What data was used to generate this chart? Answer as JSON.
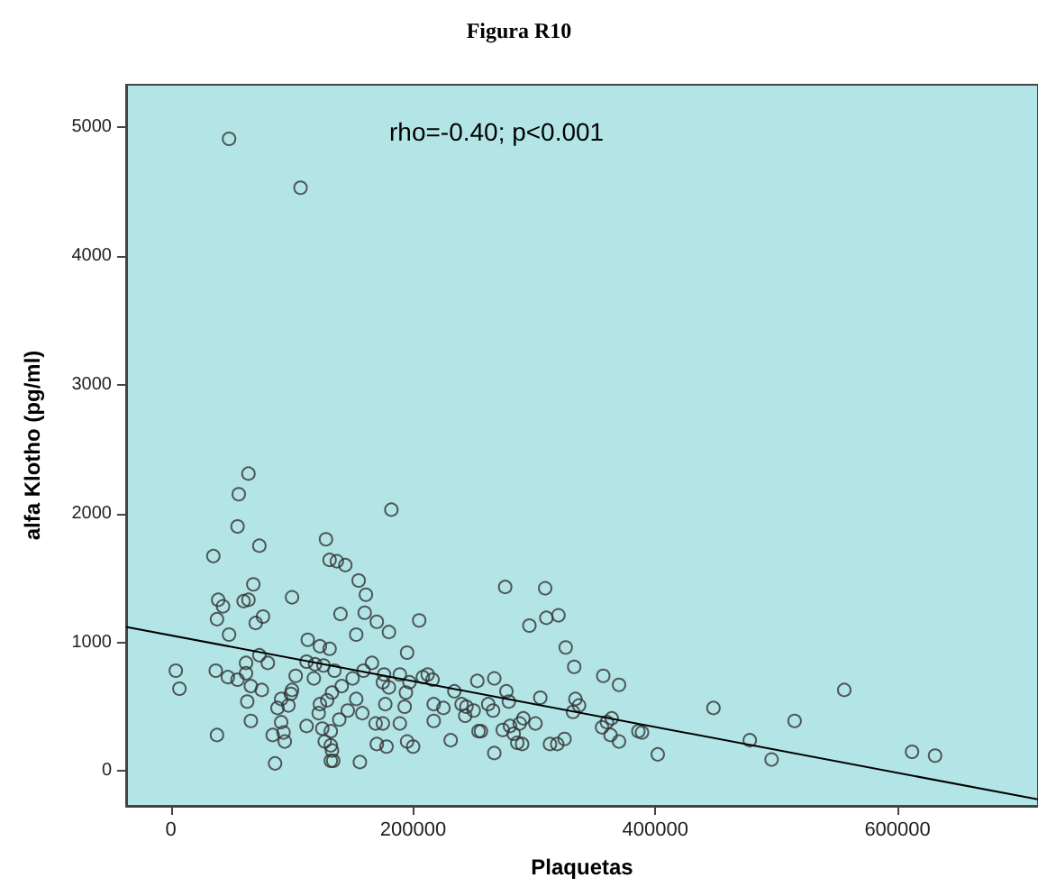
{
  "chart_data": {
    "type": "scatter",
    "title": "Figura R10",
    "xlabel": "Plaquetas",
    "ylabel": "alfa Klotho (pg/ml)",
    "annotations": [
      "rho=-0.40; p<0.001"
    ],
    "xlim": [
      -37000,
      716000
    ],
    "ylim": [
      -270,
      5330
    ],
    "xticks": [
      0,
      200000,
      400000,
      600000
    ],
    "yticks": [
      0,
      1000,
      2000,
      3000,
      4000,
      5000
    ],
    "grid": false,
    "series": [
      {
        "color": "#333333",
        "marker": "circle",
        "x": [
          48000,
          107000,
          64000,
          56000,
          55000,
          73000,
          35000,
          128000,
          131000,
          137000,
          144000,
          182000,
          155000,
          161000,
          160000,
          170000,
          180000,
          205000,
          100000,
          39000,
          43000,
          60000,
          64000,
          68000,
          38000,
          70000,
          76000,
          48000,
          140000,
          153000,
          195000,
          113000,
          123000,
          131000,
          73000,
          80000,
          112000,
          119000,
          126000,
          4000,
          7000,
          37000,
          47000,
          55000,
          62000,
          62000,
          66000,
          75000,
          103000,
          118000,
          135000,
          150000,
          159000,
          166000,
          176000,
          189000,
          175000,
          180000,
          197000,
          208000,
          216000,
          63000,
          91000,
          100000,
          99000,
          88000,
          97000,
          133000,
          129000,
          141000,
          153000,
          123000,
          146000,
          158000,
          177000,
          194000,
          193000,
          217000,
          66000,
          91000,
          112000,
          122000,
          139000,
          169000,
          175000,
          189000,
          217000,
          38000,
          84000,
          93000,
          94000,
          125000,
          132000,
          127000,
          132000,
          133000,
          170000,
          178000,
          195000,
          200000,
          86000,
          132000,
          134000,
          156000,
          212000,
          225000,
          231000,
          234000,
          240000,
          244000,
          243000,
          250000,
          253000,
          254000,
          256000,
          262000,
          266000,
          267000,
          267000,
          274000,
          276000,
          277000,
          279000,
          280000,
          283000,
          286000,
          288000,
          290000,
          291000,
          296000,
          301000,
          305000,
          309000,
          310000,
          320000,
          313000,
          319000,
          325000,
          326000,
          333000,
          334000,
          332000,
          337000,
          357000,
          356000,
          360000,
          364000,
          363000,
          370000,
          370000,
          386000,
          389000,
          402000,
          448000,
          478000,
          496000,
          515000,
          556000,
          612000,
          631000
        ],
        "values": [
          4910,
          4530,
          2310,
          2150,
          1900,
          1750,
          1670,
          1800,
          1640,
          1630,
          1600,
          2030,
          1480,
          1370,
          1230,
          1160,
          1080,
          1170,
          1350,
          1330,
          1280,
          1320,
          1330,
          1450,
          1180,
          1150,
          1200,
          1060,
          1220,
          1060,
          920,
          1020,
          970,
          950,
          900,
          840,
          850,
          830,
          820,
          780,
          640,
          780,
          730,
          710,
          840,
          760,
          660,
          630,
          740,
          720,
          780,
          720,
          780,
          840,
          750,
          750,
          690,
          650,
          690,
          730,
          710,
          540,
          560,
          630,
          600,
          490,
          510,
          610,
          550,
          660,
          560,
          520,
          470,
          450,
          520,
          610,
          500,
          520,
          390,
          380,
          350,
          450,
          400,
          370,
          370,
          370,
          390,
          280,
          280,
          300,
          230,
          330,
          310,
          230,
          200,
          160,
          210,
          190,
          230,
          190,
          60,
          80,
          80,
          70,
          750,
          490,
          240,
          620,
          520,
          500,
          430,
          470,
          700,
          310,
          310,
          520,
          470,
          720,
          140,
          320,
          1430,
          620,
          540,
          350,
          290,
          220,
          370,
          210,
          410,
          1130,
          370,
          570,
          1420,
          1190,
          1210,
          210,
          210,
          250,
          960,
          810,
          560,
          460,
          510,
          740,
          340,
          380,
          410,
          280,
          670,
          230,
          310,
          300,
          130,
          490,
          240,
          90,
          390,
          630,
          150,
          120
        ]
      },
      {
        "type": "line",
        "color": "#000000",
        "marker": "none",
        "x": [
          -37000,
          716000
        ],
        "values": [
          1120,
          -220
        ]
      }
    ]
  }
}
